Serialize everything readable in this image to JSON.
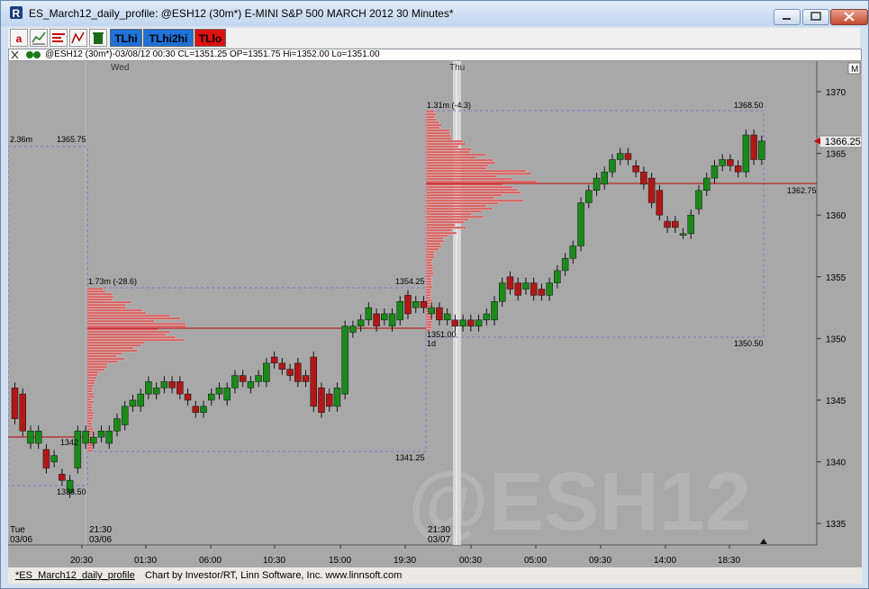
{
  "window": {
    "title": "ES_March12_daily_profile: @ESH12 (30m*) E-MINI S&P 500 MARCH 2012 30 Minutes*"
  },
  "toolbar": {
    "letter_button": "a",
    "tlhi_label": "TLhi",
    "tlhi2hi_label": "TLhi2hi",
    "tllo_label": "TLlo"
  },
  "info_bar": {
    "text": "@ESH12 (30m*)-03/08/12 00:30 CL=1351.25 OP=1351.75 Hi=1352.00 Lo=1351.00"
  },
  "chart": {
    "watermark": "@ESH12",
    "m_button": "M",
    "current_price": "1366.25",
    "day_labels": [
      "Wed",
      "Thu"
    ],
    "date_labels": [
      {
        "time": "Tue",
        "date": "03/06"
      },
      {
        "time": "21:30",
        "date": "03/06"
      },
      {
        "time": "21:30",
        "date": "03/07"
      }
    ],
    "time_axis": [
      "20:30",
      "01:30",
      "06:00",
      "10:30",
      "15:00",
      "19:30",
      "00:30",
      "05:00",
      "09:30",
      "14:00",
      "18:30"
    ],
    "price_axis": [
      "1370",
      "1365",
      "1360",
      "1355",
      "1350",
      "1345",
      "1340",
      "1335"
    ],
    "profile_labels": {
      "p1_volume": "2.36m",
      "p1_high": "1365.75",
      "p1_low": "1338.50",
      "p1_poc": "1342",
      "p2_volume": "1.73m (-28.6)",
      "p2_high": "1354.25",
      "p2_low": "1341.25",
      "p3_volume": "1.31m (-4.3)",
      "p3_high": "1368.50",
      "p3_low": "1350.50",
      "p3_poc": "1362.75",
      "day_low": "1351.00",
      "day_tag": "1d"
    },
    "colors": {
      "background": "#a8a8a8",
      "up": "#1a8a1a",
      "down": "#b01818",
      "profile": "#d96060",
      "poc": "#c00000",
      "box": "#7878d0"
    },
    "candles_open_close": [
      [
        1346.0,
        1343.5
      ],
      [
        1345.5,
        1342.5
      ],
      [
        1341.5,
        1342.5
      ],
      [
        1341.5,
        1342.5
      ],
      [
        1341.0,
        1339.5
      ],
      [
        1340.0,
        1340.5
      ],
      [
        1339.0,
        1338.5
      ],
      [
        1337.5,
        1338.5
      ],
      [
        1339.5,
        1342.5
      ],
      [
        1341.5,
        1342.5
      ],
      [
        1341.5,
        1342.0
      ],
      [
        1342.0,
        1342.5
      ],
      [
        1341.5,
        1342.5
      ],
      [
        1342.5,
        1343.5
      ],
      [
        1343.0,
        1344.5
      ],
      [
        1344.5,
        1345.0
      ],
      [
        1344.5,
        1345.5
      ],
      [
        1345.5,
        1346.5
      ],
      [
        1345.5,
        1346.0
      ],
      [
        1346.0,
        1346.5
      ],
      [
        1346.5,
        1346.0
      ],
      [
        1346.5,
        1345.5
      ],
      [
        1345.5,
        1345.0
      ],
      [
        1344.5,
        1344.0
      ],
      [
        1344.0,
        1344.5
      ],
      [
        1345.0,
        1345.5
      ],
      [
        1345.5,
        1346.0
      ],
      [
        1345.0,
        1346.0
      ],
      [
        1346.0,
        1347.0
      ],
      [
        1347.0,
        1346.5
      ],
      [
        1346.0,
        1346.5
      ],
      [
        1346.5,
        1347.0
      ],
      [
        1346.5,
        1348.0
      ],
      [
        1348.5,
        1348.0
      ],
      [
        1348.0,
        1347.5
      ],
      [
        1347.5,
        1347.0
      ],
      [
        1348.0,
        1346.5
      ],
      [
        1347.0,
        1346.5
      ],
      [
        1348.5,
        1344.5
      ],
      [
        1346.0,
        1344.0
      ],
      [
        1345.5,
        1344.5
      ],
      [
        1344.5,
        1346.0
      ],
      [
        1345.5,
        1351.0
      ],
      [
        1350.5,
        1351.0
      ],
      [
        1351.0,
        1351.5
      ],
      [
        1351.5,
        1352.5
      ],
      [
        1352.0,
        1351.0
      ],
      [
        1351.5,
        1352.0
      ],
      [
        1351.0,
        1352.0
      ],
      [
        1351.5,
        1353.0
      ],
      [
        1353.5,
        1352.0
      ],
      [
        1352.5,
        1353.0
      ],
      [
        1353.0,
        1352.5
      ],
      [
        1352.0,
        1352.5
      ],
      [
        1352.5,
        1351.5
      ],
      [
        1351.5,
        1352.0
      ],
      [
        1351.5,
        1351.0
      ],
      [
        1351.0,
        1351.5
      ],
      [
        1351.5,
        1351.0
      ],
      [
        1351.0,
        1351.5
      ],
      [
        1351.5,
        1352.0
      ],
      [
        1351.5,
        1353.0
      ],
      [
        1353.0,
        1354.5
      ],
      [
        1355.0,
        1354.0
      ],
      [
        1354.5,
        1353.5
      ],
      [
        1354.0,
        1354.5
      ],
      [
        1354.5,
        1353.5
      ],
      [
        1354.0,
        1353.5
      ],
      [
        1353.5,
        1354.5
      ],
      [
        1354.5,
        1355.5
      ],
      [
        1355.5,
        1356.5
      ],
      [
        1356.5,
        1357.5
      ],
      [
        1357.5,
        1361.0
      ],
      [
        1361.0,
        1362.0
      ],
      [
        1362.0,
        1363.0
      ],
      [
        1362.5,
        1363.5
      ],
      [
        1363.5,
        1364.5
      ],
      [
        1364.5,
        1365.0
      ],
      [
        1365.0,
        1364.5
      ],
      [
        1364.0,
        1363.5
      ],
      [
        1363.5,
        1362.5
      ],
      [
        1363.0,
        1361.0
      ],
      [
        1362.0,
        1360.0
      ],
      [
        1359.5,
        1359.0
      ],
      [
        1359.5,
        1359.0
      ],
      [
        1358.5,
        1358.5
      ],
      [
        1358.5,
        1360.0
      ],
      [
        1360.5,
        1362.0
      ],
      [
        1362.0,
        1363.0
      ],
      [
        1363.0,
        1364.0
      ],
      [
        1364.0,
        1364.5
      ],
      [
        1364.5,
        1364.0
      ],
      [
        1364.0,
        1363.5
      ],
      [
        1363.5,
        1366.5
      ],
      [
        1366.5,
        1364.5
      ],
      [
        1364.5,
        1366.0
      ]
    ]
  },
  "status_bar": {
    "tab": "*ES_March12_daily_profile",
    "credit": "Chart by Investor/RT, Linn Software, Inc. www.linnsoft.com"
  }
}
